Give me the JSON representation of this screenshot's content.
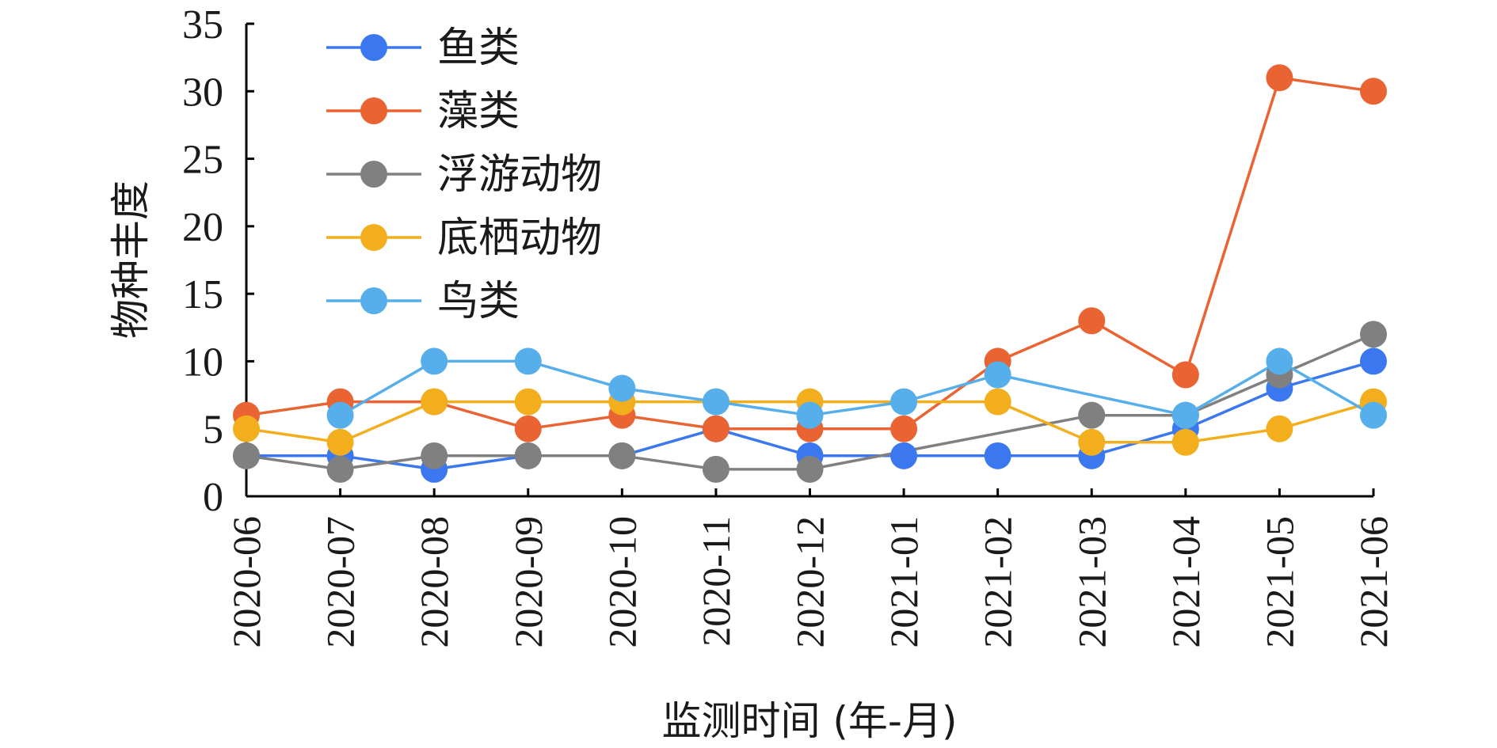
{
  "chart_data": {
    "type": "line",
    "title": "",
    "xlabel": "监测时间 (年-月)",
    "ylabel": "物种丰度",
    "ylim": [
      0,
      35
    ],
    "yticks": [
      "0",
      "5",
      "10",
      "15",
      "20",
      "25",
      "30",
      "35"
    ],
    "categories": [
      "2020-06",
      "2020-07",
      "2020-08",
      "2020-09",
      "2020-10",
      "2020-11",
      "2020-12",
      "2021-01",
      "2021-02",
      "2021-03",
      "2021-04",
      "2021-05",
      "2021-06"
    ],
    "grid": false,
    "legend_position": "top-left",
    "series": [
      {
        "name": "鱼类",
        "color": "#3b78f0",
        "values": [
          3,
          3,
          2,
          3,
          3,
          5,
          3,
          3,
          3,
          3,
          5,
          8,
          10
        ]
      },
      {
        "name": "藻类",
        "color": "#ea6332",
        "values": [
          6,
          7,
          7,
          5,
          6,
          5,
          5,
          5,
          10,
          13,
          9,
          31,
          30
        ]
      },
      {
        "name": "浮游动物",
        "color": "#808080",
        "values": [
          3,
          2,
          3,
          3,
          3,
          2,
          2,
          null,
          null,
          6,
          6,
          9,
          12
        ]
      },
      {
        "name": "底栖动物",
        "color": "#f3ae1d",
        "values": [
          5,
          4,
          7,
          7,
          7,
          7,
          7,
          null,
          7,
          4,
          4,
          5,
          7
        ]
      },
      {
        "name": "鸟类",
        "color": "#56aeea",
        "values": [
          null,
          6,
          10,
          10,
          8,
          7,
          6,
          7,
          9,
          null,
          6,
          10,
          6
        ]
      }
    ]
  }
}
